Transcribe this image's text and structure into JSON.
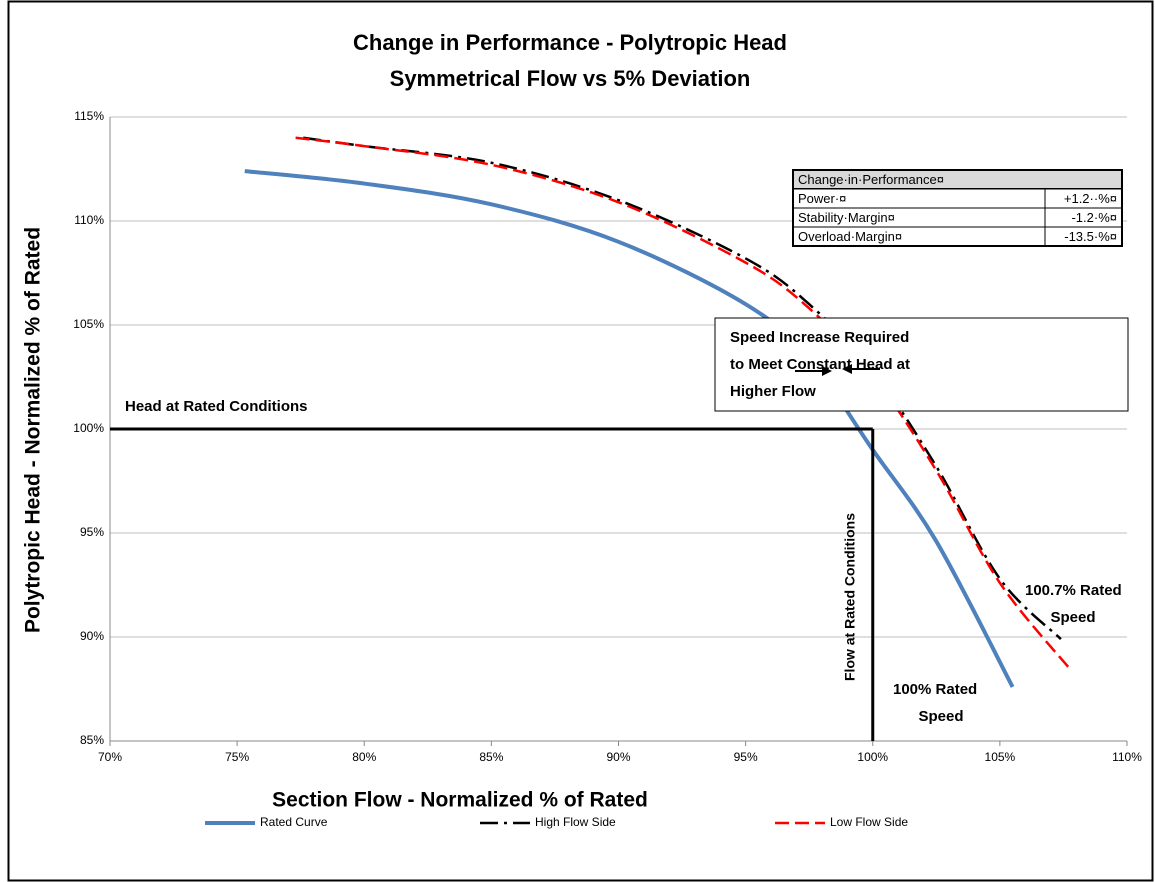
{
  "chart_data": {
    "type": "line",
    "title": "Change in Performance - Polytropic Head",
    "subtitle": "Symmetrical Flow vs 5% Deviation",
    "x_label": "Section Flow - Normalized % of Rated",
    "y_label": "Polytropic Head - Normalized % of Rated",
    "xlim": [
      70,
      110
    ],
    "xticks": [
      {
        "value": 70,
        "label": "70%"
      },
      {
        "value": 75,
        "label": "75%"
      },
      {
        "value": 80,
        "label": "80%"
      },
      {
        "value": 85,
        "label": "85%"
      },
      {
        "value": 90,
        "label": "90%"
      },
      {
        "value": 95,
        "label": "95%"
      },
      {
        "value": 100,
        "label": "100%"
      },
      {
        "value": 105,
        "label": "105%"
      },
      {
        "value": 110,
        "label": "110%"
      }
    ],
    "ylim": [
      85,
      115
    ],
    "yticks": [
      {
        "value": 85,
        "label": "85%"
      },
      {
        "value": 90,
        "label": "90%"
      },
      {
        "value": 95,
        "label": "95%"
      },
      {
        "value": 100,
        "label": "100%"
      },
      {
        "value": 105,
        "label": "105%"
      },
      {
        "value": 110,
        "label": "110%"
      },
      {
        "value": 115,
        "label": "115%"
      }
    ],
    "grid": true,
    "legend": "bottom",
    "series": [
      {
        "name": "Rated Curve",
        "color": "#4f81bd",
        "line_style": "solid",
        "x": [
          75.3,
          80,
          85,
          90,
          95,
          97.5,
          100,
          102.5,
          105.5
        ],
        "values": [
          112.4,
          111.8,
          110.8,
          109.0,
          106.0,
          103.4,
          99.0,
          94.6,
          87.6
        ]
      },
      {
        "name": "High Flow Side",
        "color": "#000000",
        "line_style": "dashdot",
        "x": [
          77.6,
          80,
          85,
          90,
          95,
          97.5,
          100,
          102.5,
          105,
          107.4
        ],
        "values": [
          114.0,
          113.6,
          112.8,
          111.0,
          108.2,
          106.0,
          102.8,
          98.2,
          92.8,
          89.9
        ]
      },
      {
        "name": "Low Flow Side",
        "color": "#ff0000",
        "line_style": "dashed",
        "x": [
          77.3,
          80,
          85,
          90,
          95,
          97.5,
          100,
          102.5,
          105,
          107.8
        ],
        "values": [
          114.0,
          113.6,
          112.7,
          110.9,
          108.0,
          105.8,
          102.6,
          98.0,
          92.6,
          88.4
        ]
      }
    ],
    "reference_lines": [
      {
        "label": "Head at Rated Conditions",
        "y": 100
      },
      {
        "label": "Flow at Rated Conditions",
        "x": 100
      }
    ],
    "annotations": [
      {
        "lines": [
          "Speed Increase Required",
          "to Meet Constant Head at",
          "Higher Flow"
        ]
      },
      {
        "lines": [
          "100.7% Rated",
          "Speed"
        ]
      },
      {
        "lines": [
          "100% Rated",
          "Speed"
        ]
      }
    ],
    "table": {
      "title": "Change·in·Performance¤",
      "rows": [
        [
          "Power·¤",
          "+1.2··%¤"
        ],
        [
          "Stability·Margin¤",
          "-1.2·%¤"
        ],
        [
          "Overload·Margin¤",
          "-13.5·%¤"
        ]
      ]
    }
  }
}
